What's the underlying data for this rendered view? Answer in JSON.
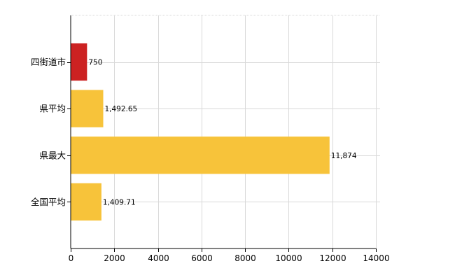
{
  "chart_data": {
    "type": "bar",
    "orientation": "horizontal",
    "categories": [
      "四街道市",
      "県平均",
      "県最大",
      "全国平均"
    ],
    "values": [
      750,
      1492.65,
      11874,
      1409.71
    ],
    "data_labels": [
      "750",
      "1,492.65",
      "11,874",
      "1,409.71"
    ],
    "colors": [
      "#cc2222",
      "#f7c33a",
      "#f7c33a",
      "#f7c33a"
    ],
    "xlim": [
      0,
      14000
    ],
    "xticks": [
      "0",
      "2000",
      "4000",
      "6000",
      "8000",
      "10000",
      "12000",
      "14000"
    ],
    "grid": true,
    "title": "",
    "xlabel": "",
    "ylabel": ""
  }
}
